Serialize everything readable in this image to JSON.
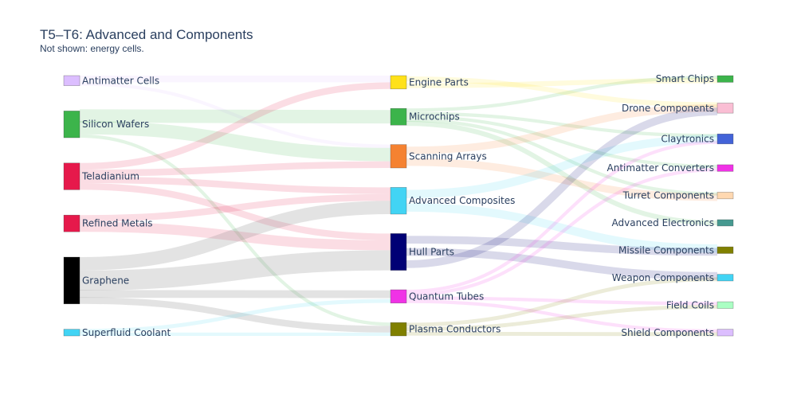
{
  "title": "T5–T6: Advanced and Components",
  "subtitle": "Not shown: energy cells.",
  "chart_data": {
    "type": "sankey",
    "nodes": [
      {
        "name": "Antimatter Cells",
        "column": 0,
        "color": "#dcbeff"
      },
      {
        "name": "Silicon Wafers",
        "column": 0,
        "color": "#3cb44b"
      },
      {
        "name": "Teladianium",
        "column": 0,
        "color": "#e6194b"
      },
      {
        "name": "Refined Metals",
        "column": 0,
        "color": "#e6194b"
      },
      {
        "name": "Graphene",
        "column": 0,
        "color": "#000000"
      },
      {
        "name": "Superfluid Coolant",
        "column": 0,
        "color": "#42d4f4"
      },
      {
        "name": "Engine Parts",
        "column": 1,
        "color": "#ffe119"
      },
      {
        "name": "Microchips",
        "column": 1,
        "color": "#3cb44b"
      },
      {
        "name": "Scanning Arrays",
        "column": 1,
        "color": "#f58231"
      },
      {
        "name": "Advanced Composites",
        "column": 1,
        "color": "#42d4f4"
      },
      {
        "name": "Hull Parts",
        "column": 1,
        "color": "#000075"
      },
      {
        "name": "Quantum Tubes",
        "column": 1,
        "color": "#f032e6"
      },
      {
        "name": "Plasma Conductors",
        "column": 1,
        "color": "#808000"
      },
      {
        "name": "Smart Chips",
        "column": 2,
        "color": "#3cb44b"
      },
      {
        "name": "Drone Components",
        "column": 2,
        "color": "#fabed4"
      },
      {
        "name": "Claytronics",
        "column": 2,
        "color": "#4363d8"
      },
      {
        "name": "Antimatter Converters",
        "column": 2,
        "color": "#f032e6"
      },
      {
        "name": "Turret Components",
        "column": 2,
        "color": "#ffd8b1"
      },
      {
        "name": "Advanced Electronics",
        "column": 2,
        "color": "#469990"
      },
      {
        "name": "Missile Components",
        "column": 2,
        "color": "#808000"
      },
      {
        "name": "Weapon Components",
        "column": 2,
        "color": "#42d4f4"
      },
      {
        "name": "Field Coils",
        "column": 2,
        "color": "#aaffc3"
      },
      {
        "name": "Shield Components",
        "column": 2,
        "color": "#dcbeff"
      }
    ],
    "links": [
      {
        "source": "Antimatter Cells",
        "target": "Engine Parts",
        "value": 2
      },
      {
        "source": "Antimatter Cells",
        "target": "Scanning Arrays",
        "value": 1
      },
      {
        "source": "Silicon Wafers",
        "target": "Microchips",
        "value": 3
      },
      {
        "source": "Silicon Wafers",
        "target": "Scanning Arrays",
        "value": 4
      },
      {
        "source": "Silicon Wafers",
        "target": "Plasma Conductors",
        "value": 1
      },
      {
        "source": "Teladianium",
        "target": "Engine Parts",
        "value": 2
      },
      {
        "source": "Teladianium",
        "target": "Scanning Arrays",
        "value": 2
      },
      {
        "source": "Teladianium",
        "target": "Advanced Composites",
        "value": 2
      },
      {
        "source": "Teladianium",
        "target": "Hull Parts",
        "value": 2
      },
      {
        "source": "Refined Metals",
        "target": "Advanced Composites",
        "value": 2
      },
      {
        "source": "Refined Metals",
        "target": "Hull Parts",
        "value": 3
      },
      {
        "source": "Graphene",
        "target": "Advanced Composites",
        "value": 4
      },
      {
        "source": "Graphene",
        "target": "Hull Parts",
        "value": 6
      },
      {
        "source": "Graphene",
        "target": "Quantum Tubes",
        "value": 2
      },
      {
        "source": "Graphene",
        "target": "Plasma Conductors",
        "value": 2
      },
      {
        "source": "Superfluid Coolant",
        "target": "Quantum Tubes",
        "value": 1
      },
      {
        "source": "Superfluid Coolant",
        "target": "Plasma Conductors",
        "value": 1
      },
      {
        "source": "Microchips",
        "target": "Smart Chips",
        "value": 1
      },
      {
        "source": "Microchips",
        "target": "Claytronics",
        "value": 1
      },
      {
        "source": "Microchips",
        "target": "Antimatter Converters",
        "value": 1
      },
      {
        "source": "Microchips",
        "target": "Turret Components",
        "value": 1
      },
      {
        "source": "Microchips",
        "target": "Advanced Electronics",
        "value": 1
      },
      {
        "source": "Engine Parts",
        "target": "Drone Components",
        "value": 1
      },
      {
        "source": "Engine Parts",
        "target": "Smart Chips",
        "value": 1
      },
      {
        "source": "Scanning Arrays",
        "target": "Drone Components",
        "value": 1
      },
      {
        "source": "Scanning Arrays",
        "target": "Turret Components",
        "value": 1
      },
      {
        "source": "Advanced Composites",
        "target": "Claytronics",
        "value": 1
      },
      {
        "source": "Advanced Composites",
        "target": "Missile Components",
        "value": 1
      },
      {
        "source": "Hull Parts",
        "target": "Missile Components",
        "value": 1
      },
      {
        "source": "Hull Parts",
        "target": "Weapon Components",
        "value": 1
      },
      {
        "source": "Hull Parts",
        "target": "Drone Components",
        "value": 1
      },
      {
        "source": "Quantum Tubes",
        "target": "Claytronics",
        "value": 1
      },
      {
        "source": "Quantum Tubes",
        "target": "Antimatter Converters",
        "value": 1
      },
      {
        "source": "Quantum Tubes",
        "target": "Field Coils",
        "value": 1
      },
      {
        "source": "Quantum Tubes",
        "target": "Shield Components",
        "value": 1
      },
      {
        "source": "Plasma Conductors",
        "target": "Weapon Components",
        "value": 1
      },
      {
        "source": "Plasma Conductors",
        "target": "Field Coils",
        "value": 1
      },
      {
        "source": "Plasma Conductors",
        "target": "Shield Components",
        "value": 1
      }
    ]
  }
}
